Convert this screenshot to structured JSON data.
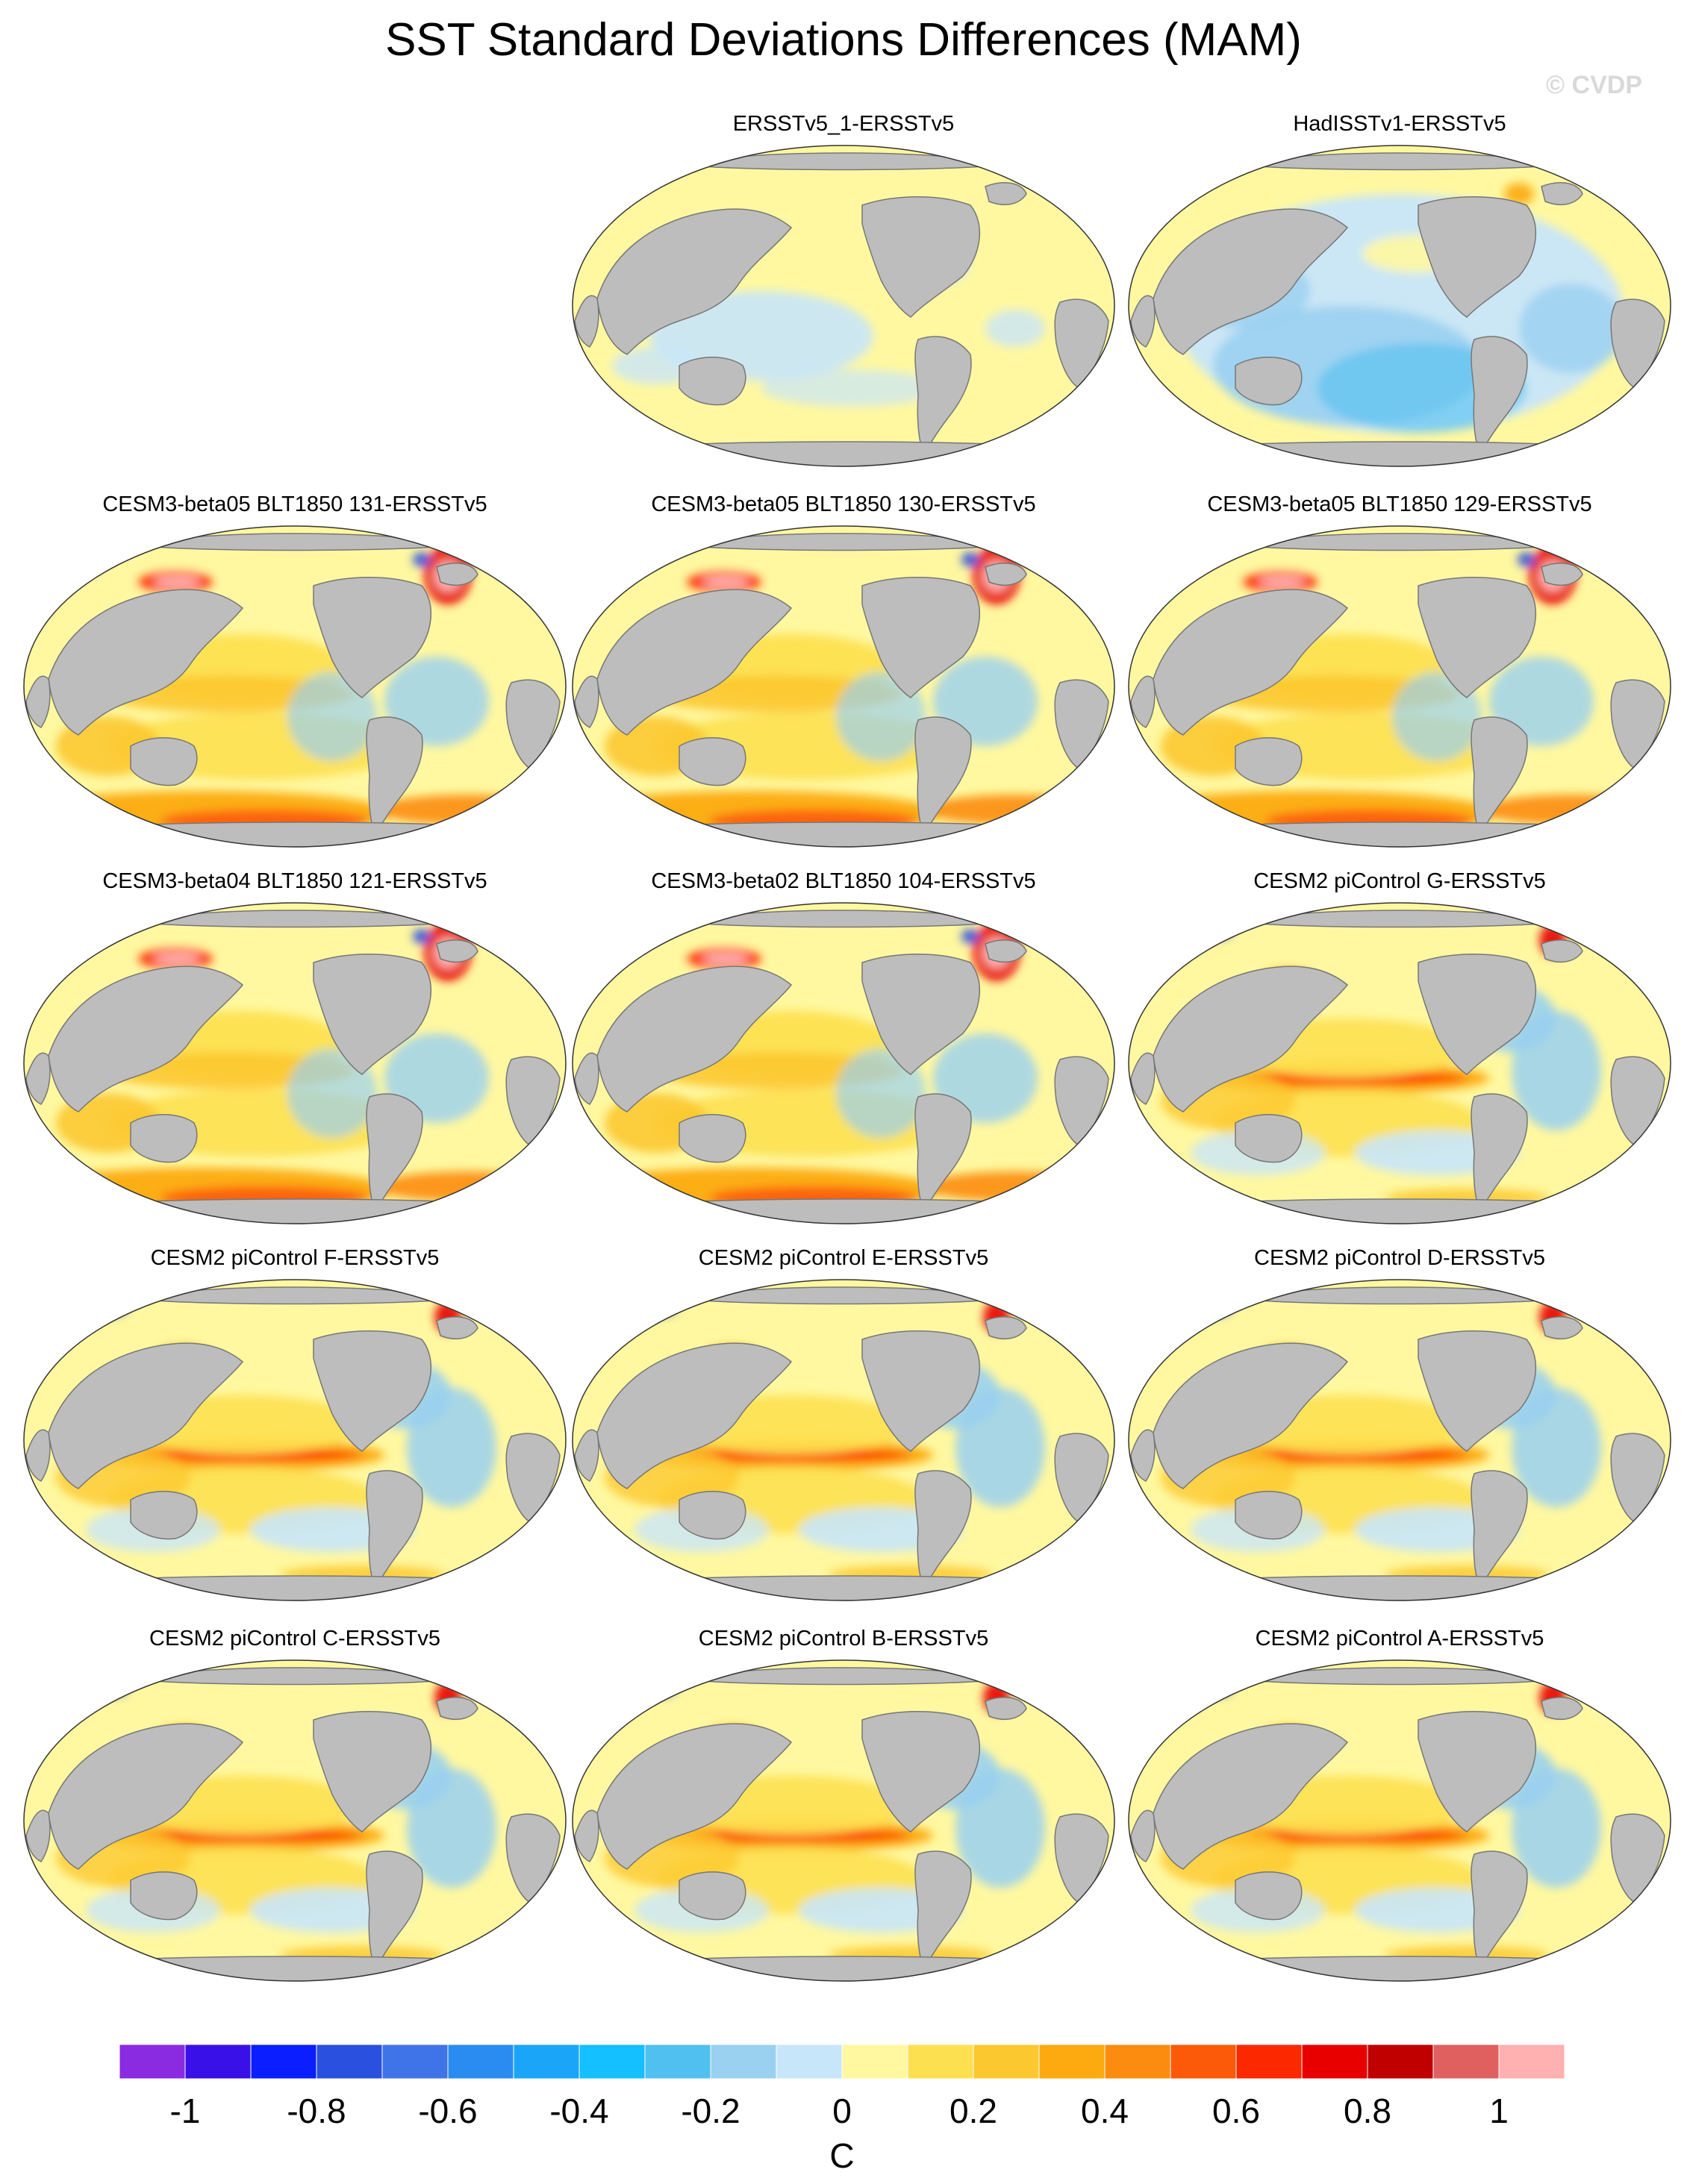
{
  "title": "SST Standard Deviations Differences (MAM)",
  "watermark": "© CVDP",
  "colors": {
    "land": "#bdbdbd",
    "land_edge": "#777777",
    "ocean_border": "#333333"
  },
  "panels": [
    {
      "title": "ERSSTv5_1-ERSSTv5",
      "row": 0,
      "col": 1,
      "pattern": "neutral"
    },
    {
      "title": "HadISSTv1-ERSSTv5",
      "row": 0,
      "col": 2,
      "pattern": "negative"
    },
    {
      "title": "CESM3-beta05 BLT1850 131-ERSSTv5",
      "row": 1,
      "col": 0,
      "pattern": "beta"
    },
    {
      "title": "CESM3-beta05 BLT1850 130-ERSSTv5",
      "row": 1,
      "col": 1,
      "pattern": "beta"
    },
    {
      "title": "CESM3-beta05 BLT1850 129-ERSSTv5",
      "row": 1,
      "col": 2,
      "pattern": "beta"
    },
    {
      "title": "CESM3-beta04 BLT1850 121-ERSSTv5",
      "row": 2,
      "col": 0,
      "pattern": "beta"
    },
    {
      "title": "CESM3-beta02 BLT1850 104-ERSSTv5",
      "row": 2,
      "col": 1,
      "pattern": "beta"
    },
    {
      "title": "CESM2 piControl G-ERSSTv5",
      "row": 2,
      "col": 2,
      "pattern": "enso"
    },
    {
      "title": "CESM2 piControl F-ERSSTv5",
      "row": 3,
      "col": 0,
      "pattern": "enso"
    },
    {
      "title": "CESM2 piControl E-ERSSTv5",
      "row": 3,
      "col": 1,
      "pattern": "enso"
    },
    {
      "title": "CESM2 piControl D-ERSSTv5",
      "row": 3,
      "col": 2,
      "pattern": "enso"
    },
    {
      "title": "CESM2 piControl C-ERSSTv5",
      "row": 4,
      "col": 0,
      "pattern": "enso"
    },
    {
      "title": "CESM2 piControl B-ERSSTv5",
      "row": 4,
      "col": 1,
      "pattern": "enso"
    },
    {
      "title": "CESM2 piControl A-ERSSTv5",
      "row": 4,
      "col": 2,
      "pattern": "enso"
    }
  ],
  "colorbar": {
    "unit": "C",
    "tick_labels": [
      "-1",
      "-0.8",
      "-0.6",
      "-0.4",
      "-0.2",
      "0",
      "0.2",
      "0.4",
      "0.6",
      "0.8",
      "1"
    ],
    "colors": [
      "#8a2be2",
      "#3a10e8",
      "#0a1eff",
      "#2a50e0",
      "#3f73e8",
      "#2a8cf0",
      "#1aa5f8",
      "#14c0ff",
      "#50c0f0",
      "#9ad0f0",
      "#c8e6fa",
      "#fff8a0",
      "#fde050",
      "#fcc830",
      "#fcaa10",
      "#fc8c10",
      "#fc5a08",
      "#fc2800",
      "#e80000",
      "#c00000",
      "#e06060",
      "#ffb0b0"
    ]
  }
}
